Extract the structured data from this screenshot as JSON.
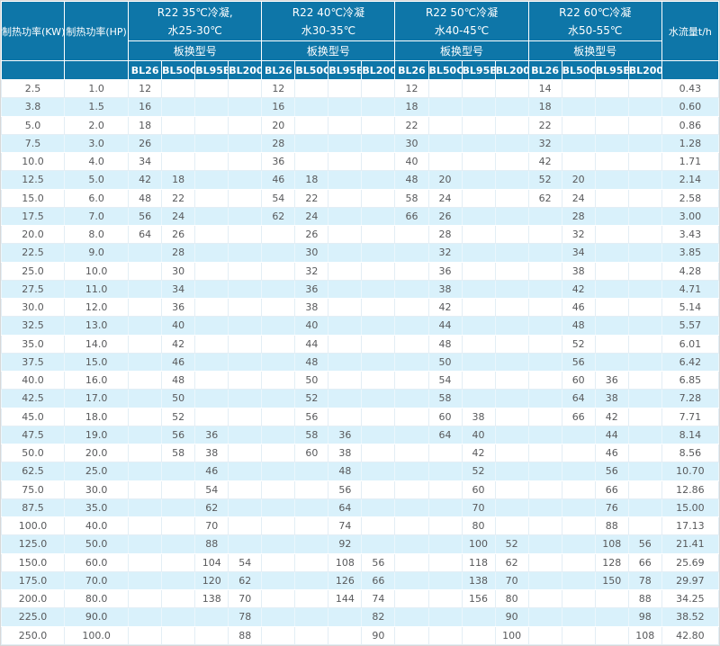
{
  "header": {
    "kw": "制热功率(KW)",
    "hp": "制热功率(HP)",
    "flow": "水流量t/h",
    "model_label": "板换型号",
    "models": [
      "BL26",
      "BL50C",
      "BL95B",
      "BL200"
    ],
    "groups": [
      {
        "line1": "R22 35℃冷凝,",
        "line2": "水25-30℃"
      },
      {
        "line1": "R22 40℃冷凝",
        "line2": "水30-35℃"
      },
      {
        "line1": "R22 50℃冷凝",
        "line2": "水40-45℃"
      },
      {
        "line1": "R22 60℃冷凝",
        "line2": "水50-55℃"
      }
    ]
  },
  "colors": {
    "header_bg": "#0e76a8",
    "header_text": "#ffffff",
    "row_alt": "#d9f1fb",
    "body_text": "#58595b"
  },
  "rows": [
    {
      "kw": "2.5",
      "hp": "1.0",
      "values": [
        "12",
        "",
        "",
        "",
        "12",
        "",
        "",
        "",
        "12",
        "",
        "",
        "",
        "14",
        "",
        "",
        ""
      ],
      "flow": "0.43"
    },
    {
      "kw": "3.8",
      "hp": "1.5",
      "values": [
        "16",
        "",
        "",
        "",
        "16",
        "",
        "",
        "",
        "18",
        "",
        "",
        "",
        "18",
        "",
        "",
        ""
      ],
      "flow": "0.60"
    },
    {
      "kw": "5.0",
      "hp": "2.0",
      "values": [
        "18",
        "",
        "",
        "",
        "20",
        "",
        "",
        "",
        "22",
        "",
        "",
        "",
        "22",
        "",
        "",
        ""
      ],
      "flow": "0.86"
    },
    {
      "kw": "7.5",
      "hp": "3.0",
      "values": [
        "26",
        "",
        "",
        "",
        "28",
        "",
        "",
        "",
        "30",
        "",
        "",
        "",
        "32",
        "",
        "",
        ""
      ],
      "flow": "1.28"
    },
    {
      "kw": "10.0",
      "hp": "4.0",
      "values": [
        "34",
        "",
        "",
        "",
        "36",
        "",
        "",
        "",
        "40",
        "",
        "",
        "",
        "42",
        "",
        "",
        ""
      ],
      "flow": "1.71"
    },
    {
      "kw": "12.5",
      "hp": "5.0",
      "values": [
        "42",
        "18",
        "",
        "",
        "46",
        "18",
        "",
        "",
        "48",
        "20",
        "",
        "",
        "52",
        "20",
        "",
        ""
      ],
      "flow": "2.14"
    },
    {
      "kw": "15.0",
      "hp": "6.0",
      "values": [
        "48",
        "22",
        "",
        "",
        "54",
        "22",
        "",
        "",
        "58",
        "24",
        "",
        "",
        "62",
        "24",
        "",
        ""
      ],
      "flow": "2.58"
    },
    {
      "kw": "17.5",
      "hp": "7.0",
      "values": [
        "56",
        "24",
        "",
        "",
        "62",
        "24",
        "",
        "",
        "66",
        "26",
        "",
        "",
        "",
        "28",
        "",
        ""
      ],
      "flow": "3.00"
    },
    {
      "kw": "20.0",
      "hp": "8.0",
      "values": [
        "64",
        "26",
        "",
        "",
        "",
        "26",
        "",
        "",
        "",
        "28",
        "",
        "",
        "",
        "32",
        "",
        ""
      ],
      "flow": "3.43"
    },
    {
      "kw": "22.5",
      "hp": "9.0",
      "values": [
        "",
        "28",
        "",
        "",
        "",
        "30",
        "",
        "",
        "",
        "32",
        "",
        "",
        "",
        "34",
        "",
        ""
      ],
      "flow": "3.85"
    },
    {
      "kw": "25.0",
      "hp": "10.0",
      "values": [
        "",
        "30",
        "",
        "",
        "",
        "32",
        "",
        "",
        "",
        "36",
        "",
        "",
        "",
        "38",
        "",
        ""
      ],
      "flow": "4.28"
    },
    {
      "kw": "27.5",
      "hp": "11.0",
      "values": [
        "",
        "34",
        "",
        "",
        "",
        "36",
        "",
        "",
        "",
        "38",
        "",
        "",
        "",
        "42",
        "",
        ""
      ],
      "flow": "4.71"
    },
    {
      "kw": "30.0",
      "hp": "12.0",
      "values": [
        "",
        "36",
        "",
        "",
        "",
        "38",
        "",
        "",
        "",
        "42",
        "",
        "",
        "",
        "46",
        "",
        ""
      ],
      "flow": "5.14"
    },
    {
      "kw": "32.5",
      "hp": "13.0",
      "values": [
        "",
        "40",
        "",
        "",
        "",
        "40",
        "",
        "",
        "",
        "44",
        "",
        "",
        "",
        "48",
        "",
        ""
      ],
      "flow": "5.57"
    },
    {
      "kw": "35.0",
      "hp": "14.0",
      "values": [
        "",
        "42",
        "",
        "",
        "",
        "44",
        "",
        "",
        "",
        "48",
        "",
        "",
        "",
        "52",
        "",
        ""
      ],
      "flow": "6.01"
    },
    {
      "kw": "37.5",
      "hp": "15.0",
      "values": [
        "",
        "46",
        "",
        "",
        "",
        "48",
        "",
        "",
        "",
        "50",
        "",
        "",
        "",
        "56",
        "",
        ""
      ],
      "flow": "6.42"
    },
    {
      "kw": "40.0",
      "hp": "16.0",
      "values": [
        "",
        "48",
        "",
        "",
        "",
        "50",
        "",
        "",
        "",
        "54",
        "",
        "",
        "",
        "60",
        "36",
        ""
      ],
      "flow": "6.85"
    },
    {
      "kw": "42.5",
      "hp": "17.0",
      "values": [
        "",
        "50",
        "",
        "",
        "",
        "52",
        "",
        "",
        "",
        "58",
        "",
        "",
        "",
        "64",
        "38",
        ""
      ],
      "flow": "7.28"
    },
    {
      "kw": "45.0",
      "hp": "18.0",
      "values": [
        "",
        "52",
        "",
        "",
        "",
        "56",
        "",
        "",
        "",
        "60",
        "38",
        "",
        "",
        "66",
        "42",
        ""
      ],
      "flow": "7.71"
    },
    {
      "kw": "47.5",
      "hp": "19.0",
      "values": [
        "",
        "56",
        "36",
        "",
        "",
        "58",
        "36",
        "",
        "",
        "64",
        "40",
        "",
        "",
        "",
        "44",
        ""
      ],
      "flow": "8.14"
    },
    {
      "kw": "50.0",
      "hp": "20.0",
      "values": [
        "",
        "58",
        "38",
        "",
        "",
        "60",
        "38",
        "",
        "",
        "",
        "42",
        "",
        "",
        "",
        "46",
        ""
      ],
      "flow": "8.56"
    },
    {
      "kw": "62.5",
      "hp": "25.0",
      "values": [
        "",
        "",
        "46",
        "",
        "",
        "",
        "48",
        "",
        "",
        "",
        "52",
        "",
        "",
        "",
        "56",
        ""
      ],
      "flow": "10.70"
    },
    {
      "kw": "75.0",
      "hp": "30.0",
      "values": [
        "",
        "",
        "54",
        "",
        "",
        "",
        "56",
        "",
        "",
        "",
        "60",
        "",
        "",
        "",
        "66",
        ""
      ],
      "flow": "12.86"
    },
    {
      "kw": "87.5",
      "hp": "35.0",
      "values": [
        "",
        "",
        "62",
        "",
        "",
        "",
        "64",
        "",
        "",
        "",
        "70",
        "",
        "",
        "",
        "76",
        ""
      ],
      "flow": "15.00"
    },
    {
      "kw": "100.0",
      "hp": "40.0",
      "values": [
        "",
        "",
        "70",
        "",
        "",
        "",
        "74",
        "",
        "",
        "",
        "80",
        "",
        "",
        "",
        "88",
        ""
      ],
      "flow": "17.13"
    },
    {
      "kw": "125.0",
      "hp": "50.0",
      "values": [
        "",
        "",
        "88",
        "",
        "",
        "",
        "92",
        "",
        "",
        "",
        "100",
        "52",
        "",
        "",
        "108",
        "56"
      ],
      "flow": "21.41"
    },
    {
      "kw": "150.0",
      "hp": "60.0",
      "values": [
        "",
        "",
        "104",
        "54",
        "",
        "",
        "108",
        "56",
        "",
        "",
        "118",
        "62",
        "",
        "",
        "128",
        "66"
      ],
      "flow": "25.69"
    },
    {
      "kw": "175.0",
      "hp": "70.0",
      "values": [
        "",
        "",
        "120",
        "62",
        "",
        "",
        "126",
        "66",
        "",
        "",
        "138",
        "70",
        "",
        "",
        "150",
        "78"
      ],
      "flow": "29.97"
    },
    {
      "kw": "200.0",
      "hp": "80.0",
      "values": [
        "",
        "",
        "138",
        "70",
        "",
        "",
        "144",
        "74",
        "",
        "",
        "156",
        "80",
        "",
        "",
        "",
        "88"
      ],
      "flow": "34.25"
    },
    {
      "kw": "225.0",
      "hp": "90.0",
      "values": [
        "",
        "",
        "",
        "78",
        "",
        "",
        "",
        "82",
        "",
        "",
        "",
        "90",
        "",
        "",
        "",
        "98"
      ],
      "flow": "38.52"
    },
    {
      "kw": "250.0",
      "hp": "100.0",
      "values": [
        "",
        "",
        "",
        "88",
        "",
        "",
        "",
        "90",
        "",
        "",
        "",
        "100",
        "",
        "",
        "",
        "108"
      ],
      "flow": "42.80"
    }
  ]
}
